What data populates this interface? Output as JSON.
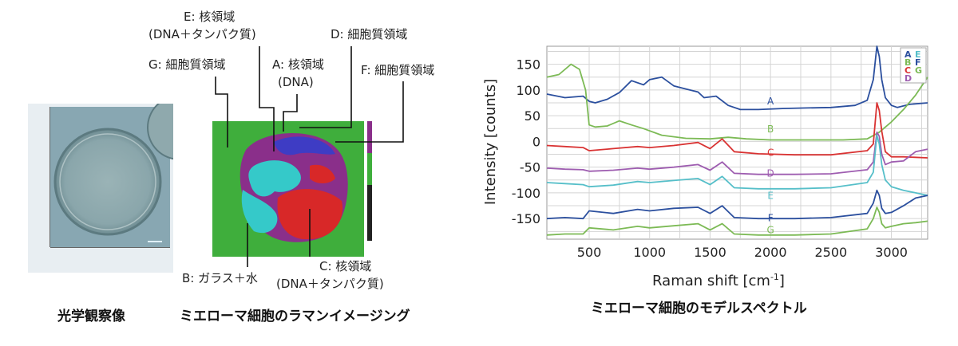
{
  "optical": {
    "caption": "光学観察像"
  },
  "imaging": {
    "caption": "ミエローマ細胞のラマンイメージング",
    "labels": {
      "E": "E: 核領域",
      "E_sub": "(DNA＋タンパク質)",
      "D": "D: 細胞質領域",
      "G": "G: 細胞質領域",
      "A": "A: 核領域",
      "A_sub": "(DNA)",
      "F": "F: 細胞質領域",
      "B": "B: ガラス＋水",
      "C": "C: 核領域",
      "C_sub": "(DNA＋タンパク質)"
    }
  },
  "chart_data": {
    "type": "line",
    "caption": "ミエローマ細胞のモデルスペクトル",
    "xlabel": "Raman shift",
    "xlabel_unit": "[cm",
    "xlabel_sup": "-1",
    "xlabel_close": "]",
    "ylabel": "Intensity [counts]",
    "xlim": [
      150,
      3300
    ],
    "ylim": [
      -190,
      185
    ],
    "xticks": [
      500,
      1000,
      1500,
      2000,
      2500,
      3000
    ],
    "yticks": [
      150,
      100,
      50,
      0,
      -50,
      -100,
      -150
    ],
    "grid": true,
    "legend": [
      "A",
      "B",
      "C",
      "D",
      "E",
      "F",
      "G"
    ],
    "series": [
      {
        "name": "A",
        "color": "#2b4f9e",
        "label_x": 2000,
        "label_y": 72,
        "x": [
          150,
          300,
          450,
          500,
          550,
          650,
          750,
          850,
          950,
          1000,
          1100,
          1200,
          1300,
          1400,
          1450,
          1550,
          1650,
          1750,
          1900,
          2100,
          2300,
          2500,
          2700,
          2800,
          2850,
          2880,
          2900,
          2920,
          2950,
          3000,
          3050,
          3150,
          3300
        ],
        "y": [
          92,
          85,
          88,
          78,
          75,
          82,
          95,
          118,
          110,
          120,
          125,
          108,
          102,
          96,
          85,
          88,
          70,
          62,
          62,
          64,
          65,
          66,
          70,
          80,
          120,
          185,
          165,
          120,
          85,
          70,
          66,
          72,
          75
        ]
      },
      {
        "name": "B",
        "color": "#7cba55",
        "label_x": 2000,
        "label_y": 18,
        "x": [
          150,
          250,
          350,
          420,
          470,
          500,
          550,
          650,
          750,
          850,
          950,
          1100,
          1300,
          1500,
          1650,
          1800,
          2000,
          2300,
          2600,
          2800,
          2900,
          3000,
          3100,
          3200,
          3300
        ],
        "y": [
          125,
          130,
          150,
          140,
          100,
          32,
          28,
          30,
          40,
          32,
          25,
          12,
          6,
          5,
          8,
          5,
          3,
          3,
          3,
          5,
          18,
          38,
          62,
          90,
          125
        ]
      },
      {
        "name": "C",
        "color": "#d93333",
        "label_x": 2000,
        "label_y": -28,
        "x": [
          150,
          300,
          450,
          500,
          700,
          900,
          1000,
          1200,
          1400,
          1500,
          1600,
          1700,
          1900,
          2200,
          2500,
          2800,
          2850,
          2880,
          2900,
          2920,
          2950,
          3000,
          3100,
          3300
        ],
        "y": [
          -8,
          -10,
          -12,
          -18,
          -14,
          -10,
          -12,
          -8,
          -2,
          -14,
          5,
          -20,
          -24,
          -26,
          -26,
          -18,
          -5,
          75,
          60,
          20,
          -20,
          -30,
          -30,
          -32
        ]
      },
      {
        "name": "D",
        "color": "#9e5db0",
        "label_x": 2000,
        "label_y": -68,
        "x": [
          150,
          300,
          450,
          500,
          700,
          900,
          1000,
          1200,
          1400,
          1500,
          1600,
          1700,
          1900,
          2200,
          2500,
          2800,
          2850,
          2880,
          2900,
          2920,
          2950,
          3000,
          3100,
          3200,
          3300
        ],
        "y": [
          -52,
          -54,
          -55,
          -58,
          -56,
          -52,
          -54,
          -50,
          -45,
          -56,
          -40,
          -62,
          -64,
          -64,
          -63,
          -55,
          -40,
          18,
          10,
          -25,
          -45,
          -40,
          -38,
          -20,
          -15
        ]
      },
      {
        "name": "E",
        "color": "#56bfc9",
        "label_x": 2000,
        "label_y": -112,
        "x": [
          150,
          300,
          450,
          500,
          700,
          900,
          1000,
          1200,
          1400,
          1500,
          1600,
          1700,
          1900,
          2200,
          2500,
          2800,
          2850,
          2880,
          2900,
          2920,
          2950,
          3000,
          3100,
          3200,
          3300
        ],
        "y": [
          -80,
          -82,
          -84,
          -88,
          -85,
          -78,
          -80,
          -76,
          -72,
          -84,
          -68,
          -90,
          -92,
          -92,
          -90,
          -80,
          -60,
          12,
          -5,
          -45,
          -75,
          -88,
          -95,
          -100,
          -105
        ]
      },
      {
        "name": "F",
        "color": "#2b4f9e",
        "label_x": 2000,
        "label_y": -155,
        "x": [
          150,
          300,
          450,
          500,
          700,
          900,
          1000,
          1200,
          1400,
          1500,
          1600,
          1700,
          1900,
          2200,
          2500,
          2800,
          2850,
          2880,
          2900,
          2920,
          2950,
          3000,
          3100,
          3200,
          3300
        ],
        "y": [
          -150,
          -148,
          -150,
          -135,
          -140,
          -132,
          -135,
          -130,
          -128,
          -140,
          -125,
          -148,
          -150,
          -150,
          -148,
          -140,
          -120,
          -95,
          -105,
          -130,
          -140,
          -138,
          -125,
          -110,
          -105
        ]
      },
      {
        "name": "G",
        "color": "#7cba55",
        "label_x": 2000,
        "label_y": -178,
        "x": [
          150,
          300,
          450,
          500,
          700,
          900,
          1000,
          1200,
          1400,
          1500,
          1600,
          1700,
          1900,
          2200,
          2500,
          2800,
          2850,
          2880,
          2900,
          2920,
          2950,
          3000,
          3100,
          3200,
          3300
        ],
        "y": [
          -182,
          -180,
          -180,
          -168,
          -172,
          -165,
          -168,
          -164,
          -160,
          -172,
          -160,
          -180,
          -182,
          -182,
          -180,
          -170,
          -150,
          -128,
          -138,
          -160,
          -168,
          -165,
          -160,
          -158,
          -155
        ]
      }
    ]
  }
}
